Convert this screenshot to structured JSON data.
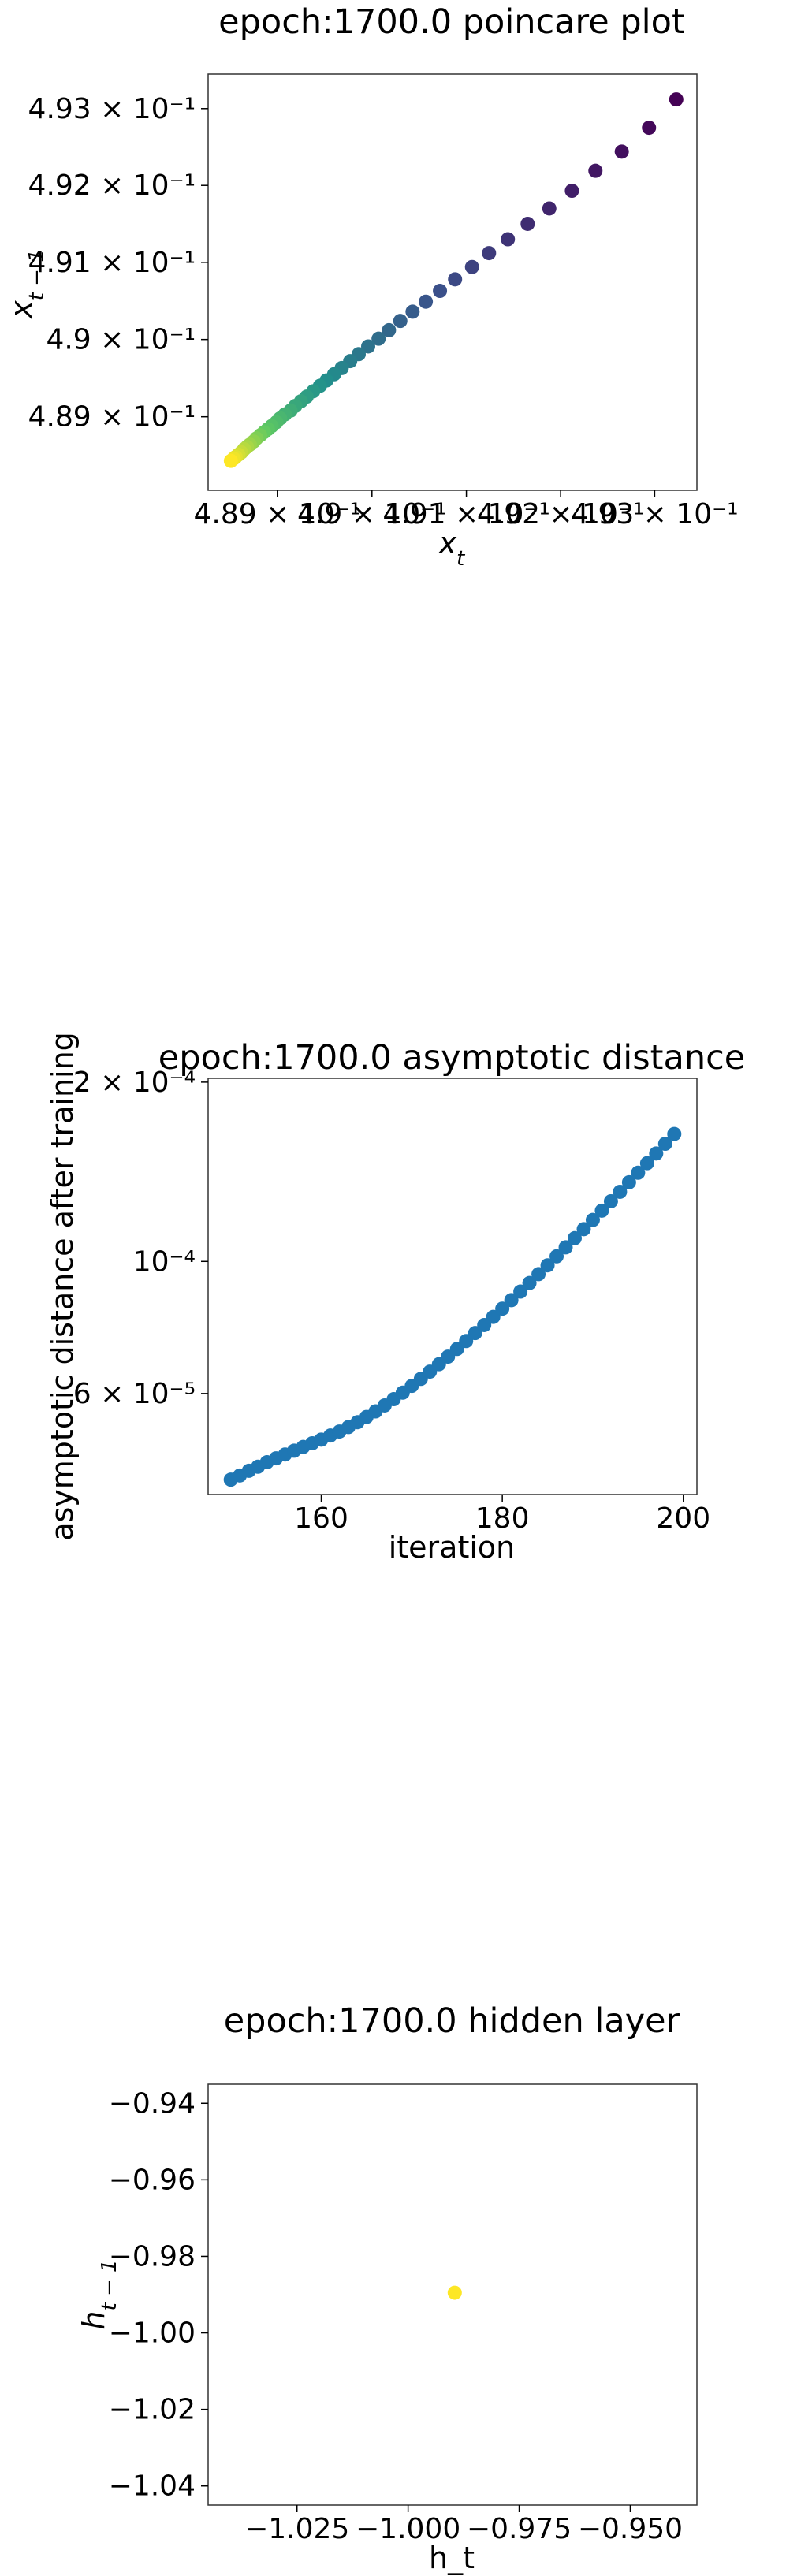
{
  "chart_data": [
    {
      "type": "scatter",
      "title": "epoch:1700.0 poincare plot",
      "xlabel": "x_t",
      "ylabel": "x_{t-1}",
      "xscale": "log",
      "yscale": "log",
      "xlim": [
        0.48827,
        0.49345
      ],
      "ylim": [
        0.48805,
        0.49345
      ],
      "colormap": "viridis",
      "color_order": "first point purple, last point yellow",
      "xticks": [
        {
          "v": 0.489,
          "label": "4.89 × 10⁻¹"
        },
        {
          "v": 0.49,
          "label": "4.9 × 10⁻¹"
        },
        {
          "v": 0.491,
          "label": "4.91 × 10⁻¹"
        },
        {
          "v": 0.492,
          "label": "4.92 × 10⁻¹"
        },
        {
          "v": 0.493,
          "label": "4.93 × 10⁻¹"
        }
      ],
      "yticks": [
        {
          "v": 0.489,
          "label": "4.89 × 10⁻¹"
        },
        {
          "v": 0.49,
          "label": "4.9 × 10⁻¹"
        },
        {
          "v": 0.491,
          "label": "4.91 × 10⁻¹"
        },
        {
          "v": 0.492,
          "label": "4.92 × 10⁻¹"
        },
        {
          "v": 0.493,
          "label": "4.93 × 10⁻¹"
        }
      ],
      "points": [
        [
          0.49323,
          0.49312
        ],
        [
          0.49294,
          0.49275
        ],
        [
          0.49265,
          0.49244
        ],
        [
          0.49237,
          0.49219
        ],
        [
          0.49212,
          0.49193
        ],
        [
          0.49188,
          0.4917
        ],
        [
          0.49165,
          0.4915
        ],
        [
          0.49144,
          0.4913
        ],
        [
          0.49124,
          0.49112
        ],
        [
          0.49106,
          0.49094
        ],
        [
          0.49088,
          0.49078
        ],
        [
          0.49072,
          0.49063
        ],
        [
          0.49057,
          0.49049
        ],
        [
          0.49043,
          0.49036
        ],
        [
          0.4903,
          0.49024
        ],
        [
          0.49018,
          0.49012
        ],
        [
          0.49007,
          0.49001
        ],
        [
          0.48996,
          0.48991
        ],
        [
          0.48986,
          0.48981
        ],
        [
          0.48977,
          0.48972
        ],
        [
          0.48968,
          0.48963
        ],
        [
          0.4896,
          0.48955
        ],
        [
          0.48952,
          0.48947
        ],
        [
          0.48945,
          0.4894
        ],
        [
          0.48938,
          0.48933
        ],
        [
          0.48931,
          0.48926
        ],
        [
          0.48925,
          0.4892
        ],
        [
          0.48919,
          0.48914
        ],
        [
          0.48914,
          0.48908
        ],
        [
          0.48908,
          0.48903
        ],
        [
          0.48903,
          0.48898
        ],
        [
          0.48899,
          0.48893
        ],
        [
          0.48894,
          0.48888
        ],
        [
          0.4889,
          0.48884
        ],
        [
          0.48886,
          0.4888
        ],
        [
          0.48882,
          0.48876
        ],
        [
          0.48878,
          0.48872
        ],
        [
          0.48875,
          0.48868
        ],
        [
          0.48871,
          0.48864
        ],
        [
          0.48868,
          0.48861
        ],
        [
          0.48865,
          0.48858
        ],
        [
          0.48862,
          0.48854
        ],
        [
          0.48859,
          0.48851
        ],
        [
          0.48856,
          0.48848
        ],
        [
          0.48854,
          0.48846
        ],
        [
          0.48851,
          0.48843
        ]
      ]
    },
    {
      "type": "scatter",
      "title": "epoch:1700.0 asymptotic distance",
      "xlabel": "iteration",
      "ylabel": "asymptotic distance after training",
      "xscale": "linear",
      "yscale": "log",
      "xlim": [
        147.5,
        201.5
      ],
      "ylim": [
        4.06e-05,
        0.000203
      ],
      "marker_color": "#1f77b4",
      "xticks": [
        {
          "v": 160,
          "label": "160"
        },
        {
          "v": 180,
          "label": "180"
        },
        {
          "v": 200,
          "label": "200"
        }
      ],
      "yticks": [
        {
          "v": 6e-05,
          "label": "6 × 10⁻⁵"
        },
        {
          "v": 0.0001,
          "label": "10⁻⁴"
        },
        {
          "v": 0.0002,
          "label": "2 × 10⁻⁴"
        }
      ],
      "x": [
        150,
        151,
        152,
        153,
        154,
        155,
        156,
        157,
        158,
        159,
        160,
        161,
        162,
        163,
        164,
        165,
        166,
        167,
        168,
        169,
        170,
        171,
        172,
        173,
        174,
        175,
        176,
        177,
        178,
        179,
        180,
        181,
        182,
        183,
        184,
        185,
        186,
        187,
        188,
        189,
        190,
        191,
        192,
        193,
        194,
        195,
        196,
        197,
        198,
        199
      ],
      "y": [
        4.3e-05,
        4.37e-05,
        4.45e-05,
        4.52e-05,
        4.6e-05,
        4.67e-05,
        4.74e-05,
        4.81e-05,
        4.88e-05,
        4.95e-05,
        5.02e-05,
        5.1e-05,
        5.18e-05,
        5.27e-05,
        5.37e-05,
        5.48e-05,
        5.6e-05,
        5.73e-05,
        5.87e-05,
        6.02e-05,
        6.18e-05,
        6.35e-05,
        6.53e-05,
        6.72e-05,
        6.92e-05,
        7.13e-05,
        7.35e-05,
        7.58e-05,
        7.82e-05,
        8.07e-05,
        8.33e-05,
        8.61e-05,
        8.9e-05,
        9.2e-05,
        9.52e-05,
        9.85e-05,
        0.000102,
        0.0001056,
        0.0001094,
        0.0001133,
        0.0001174,
        0.0001217,
        0.0001262,
        0.0001309,
        0.0001358,
        0.0001409,
        0.0001462,
        0.0001518,
        0.0001576,
        0.0001637
      ]
    },
    {
      "type": "scatter",
      "title": "epoch:1700.0 hidden layer",
      "xlabel": "h_t",
      "ylabel": "h_{t-1}",
      "xscale": "linear",
      "yscale": "linear",
      "xlim": [
        -1.045,
        -0.935
      ],
      "ylim": [
        -1.045,
        -0.935
      ],
      "marker_color": "#fde725",
      "xticks": [
        {
          "v": -1.025,
          "label": "−1.025"
        },
        {
          "v": -1.0,
          "label": "−1.000"
        },
        {
          "v": -0.975,
          "label": "−0.975"
        },
        {
          "v": -0.95,
          "label": "−0.950"
        }
      ],
      "yticks": [
        {
          "v": -0.94,
          "label": "−0.94"
        },
        {
          "v": -0.96,
          "label": "−0.96"
        },
        {
          "v": -0.98,
          "label": "−0.98"
        },
        {
          "v": -1.0,
          "label": "−1.00"
        },
        {
          "v": -1.02,
          "label": "−1.02"
        },
        {
          "v": -1.04,
          "label": "−1.04"
        }
      ],
      "points": [
        [
          -0.9895,
          -0.9895
        ]
      ]
    }
  ]
}
